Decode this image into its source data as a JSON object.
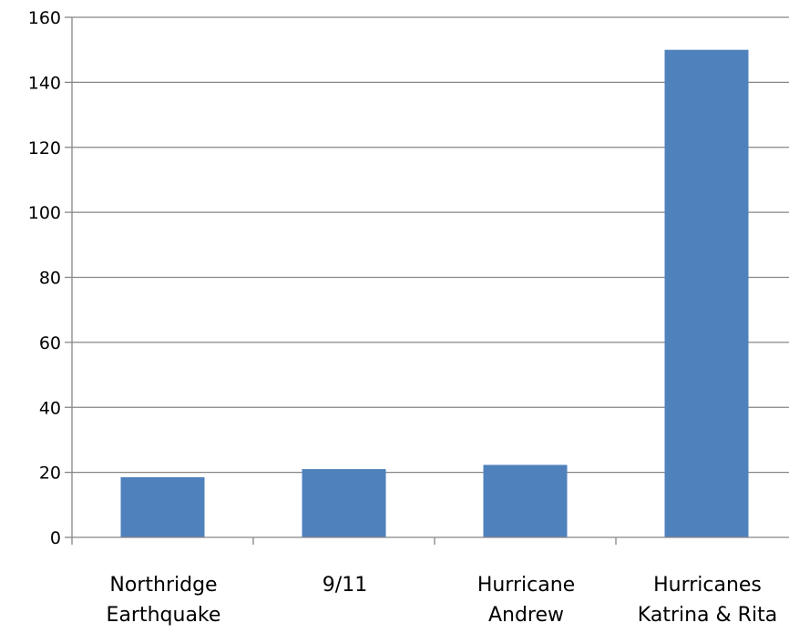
{
  "chart_data": {
    "type": "bar",
    "title": "",
    "xlabel": "",
    "ylabel": "",
    "ylim": [
      0,
      160
    ],
    "y_ticks": [
      0,
      20,
      40,
      60,
      80,
      100,
      120,
      140,
      160
    ],
    "grid": true,
    "legend": "none",
    "bar_color": "#4F81BD",
    "categories": [
      [
        "Northridge",
        "Earthquake"
      ],
      [
        "9/11"
      ],
      [
        "Hurricane",
        "Andrew"
      ],
      [
        "Hurricanes",
        "Katrina & Rita"
      ]
    ],
    "values": [
      18.5,
      21,
      22.3,
      150
    ]
  }
}
